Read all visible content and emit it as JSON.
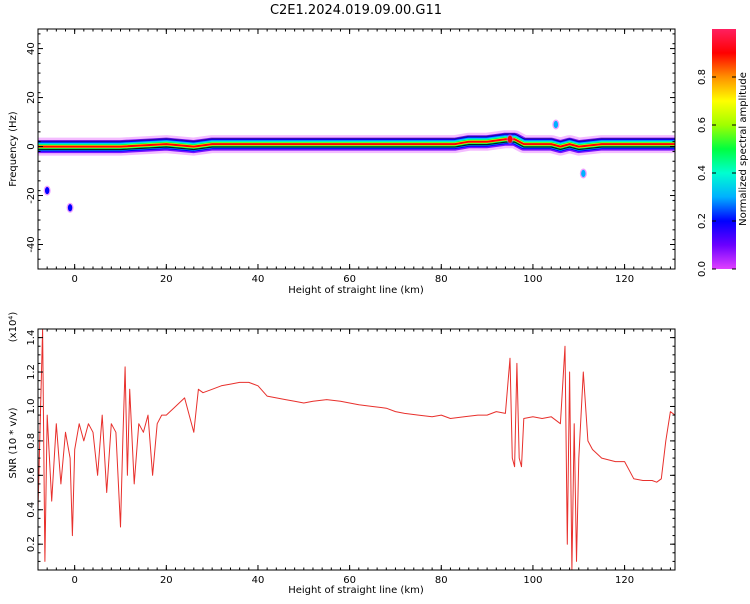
{
  "title": "C2E1.2024.019.09.00.G11",
  "colors": {
    "snr_line": "#e8302c",
    "axes": "#000000",
    "colormap": [
      "#e040ff",
      "#6a00ff",
      "#0000ff",
      "#00b0ff",
      "#00ffd0",
      "#00ff40",
      "#a0ff00",
      "#ffff00",
      "#ff9000",
      "#ff0000",
      "#ff2060"
    ]
  },
  "chart_data": [
    {
      "type": "heatmap",
      "xlabel": "Height of straight line (km)",
      "ylabel": "Frequency (Hz)",
      "xlim": [
        -8,
        131
      ],
      "ylim": [
        -50,
        48
      ],
      "xticks": [
        0,
        20,
        40,
        60,
        80,
        100,
        120
      ],
      "yticks": [
        40,
        20,
        0,
        -20,
        -40
      ],
      "xtick_labels": [
        "0",
        "20",
        "40",
        "60",
        "80",
        "100",
        "120"
      ],
      "ytick_labels": [
        "40",
        "20",
        "0",
        "-20",
        "-40"
      ],
      "colorbar": {
        "label": "Normalized spectral amplitude",
        "range": [
          0,
          1
        ],
        "ticks": [
          0.0,
          0.2,
          0.4,
          0.6,
          0.8
        ],
        "tick_labels": [
          "0.0",
          "0.2",
          "0.4",
          "0.6",
          "0.8"
        ]
      },
      "ridge": {
        "x": [
          -8,
          0,
          10,
          20,
          26,
          30,
          40,
          50,
          60,
          70,
          80,
          83,
          86,
          90,
          94,
          96,
          98,
          100,
          104,
          106,
          108,
          110,
          115,
          120,
          131
        ],
        "frequency": [
          0,
          0,
          0,
          1,
          0,
          1,
          1,
          1,
          1,
          1,
          1,
          1,
          2,
          2,
          3,
          3,
          1,
          1,
          1,
          0,
          1,
          0,
          1,
          1,
          1
        ]
      },
      "blobs": [
        {
          "x": -6,
          "frequency": -18,
          "amplitude": 0.2
        },
        {
          "x": -1,
          "frequency": -25,
          "amplitude": 0.2
        },
        {
          "x": 105,
          "frequency": 9,
          "amplitude": 0.25
        },
        {
          "x": 111,
          "frequency": -11,
          "amplitude": 0.25
        },
        {
          "x": 95,
          "frequency": 3,
          "amplitude": 0.9
        }
      ]
    },
    {
      "type": "line",
      "xlabel": "Height of straight line (km)",
      "ylabel": "SNR (10 * v/v)",
      "scale_label": "(x10⁴)",
      "xlim": [
        -8,
        131
      ],
      "ylim": [
        0.05,
        1.45
      ],
      "xticks": [
        0,
        20,
        40,
        60,
        80,
        100,
        120
      ],
      "yticks": [
        0.2,
        0.4,
        0.6,
        0.8,
        1.0,
        1.2,
        1.4
      ],
      "xtick_labels": [
        "0",
        "20",
        "40",
        "60",
        "80",
        "100",
        "120"
      ],
      "ytick_labels": [
        "0.2",
        "0.4",
        "0.6",
        "0.8",
        "1.0",
        "1.2",
        "1.4"
      ],
      "series": [
        {
          "x": [
            -8,
            -7,
            -6.5,
            -6,
            -5,
            -4,
            -3,
            -2,
            -1,
            -0.5,
            0,
            1,
            2,
            3,
            4,
            5,
            6,
            7,
            8,
            9,
            10,
            10.5,
            11,
            11.5,
            12,
            13,
            14,
            15,
            16,
            17,
            18,
            19,
            20,
            22,
            24,
            26,
            27,
            28,
            30,
            32,
            34,
            36,
            38,
            40,
            42,
            44,
            46,
            48,
            50,
            52,
            55,
            58,
            60,
            62,
            65,
            68,
            70,
            72,
            75,
            78,
            80,
            82,
            85,
            88,
            90,
            92,
            94,
            95,
            95.5,
            96,
            96.5,
            97,
            97.5,
            98,
            100,
            102,
            104,
            106,
            107,
            107.5,
            108,
            108.5,
            109,
            109.5,
            110,
            111,
            112,
            113,
            115,
            118,
            120,
            121,
            122,
            124,
            126,
            127,
            128,
            129,
            130,
            131
          ],
          "y": [
            0.4,
            1.45,
            0.1,
            0.95,
            0.45,
            0.9,
            0.55,
            0.85,
            0.7,
            0.25,
            0.75,
            0.9,
            0.8,
            0.9,
            0.85,
            0.6,
            0.95,
            0.5,
            0.9,
            0.85,
            0.3,
            0.8,
            1.23,
            0.6,
            1.1,
            0.55,
            0.9,
            0.85,
            0.95,
            0.6,
            0.9,
            0.95,
            0.95,
            1.0,
            1.05,
            0.85,
            1.1,
            1.08,
            1.1,
            1.12,
            1.13,
            1.14,
            1.14,
            1.12,
            1.06,
            1.05,
            1.04,
            1.03,
            1.02,
            1.03,
            1.04,
            1.03,
            1.02,
            1.01,
            1.0,
            0.99,
            0.97,
            0.96,
            0.95,
            0.94,
            0.95,
            0.93,
            0.94,
            0.95,
            0.95,
            0.97,
            0.96,
            1.28,
            0.7,
            0.65,
            1.25,
            0.7,
            0.65,
            0.93,
            0.94,
            0.93,
            0.94,
            0.9,
            1.35,
            0.2,
            1.2,
            0.05,
            0.9,
            0.1,
            0.7,
            1.2,
            0.8,
            0.75,
            0.7,
            0.68,
            0.68,
            0.63,
            0.58,
            0.57,
            0.57,
            0.56,
            0.58,
            0.8,
            0.97,
            0.95
          ]
        }
      ]
    }
  ]
}
